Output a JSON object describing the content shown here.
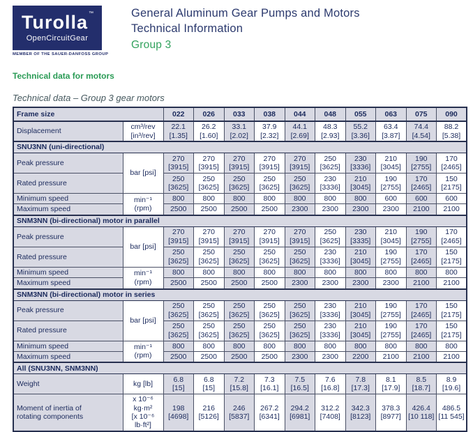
{
  "logo": {
    "brand": "Turolla",
    "trademark": "™",
    "subbrand": "OpenCircuitGear",
    "member_line": "MEMBER OF THE SAUER-DANFOSS GROUP"
  },
  "header": {
    "title_line1": "General Aluminum Gear Pumps and Motors",
    "title_line2": "Technical Information",
    "group_label": "Group 3"
  },
  "section_heading": "Technical data for motors",
  "table_caption": "Technical data – Group 3 gear motors",
  "colors": {
    "logo_navy": "#232e6c",
    "text_navy": "#1b2a5c",
    "heading_green": "#2a9b55",
    "cell_gray": "#d8d9e3",
    "border_dark": "#27304f"
  },
  "table": {
    "frame_size_label": "Frame size",
    "frame_sizes": [
      "022",
      "026",
      "033",
      "038",
      "044",
      "048",
      "055",
      "063",
      "075",
      "090"
    ],
    "pressure_unit": "bar [psi]",
    "speed_unit": "min⁻¹ (rpm)",
    "displacement": {
      "label": "Displacement",
      "unit": [
        "cm³/rev",
        "[in³/rev]"
      ],
      "values": [
        "22.1",
        "26.2",
        "33.1",
        "37.9",
        "44.1",
        "48.3",
        "55.2",
        "63.4",
        "74.4",
        "88.2"
      ],
      "sub": [
        "[1.35]",
        "[1.60]",
        "[2.02]",
        "[2.32]",
        "[2.69]",
        "[2.93]",
        "[3.36]",
        "[3.87]",
        "[4.54]",
        "[5.38]"
      ]
    },
    "sections": [
      {
        "title": "SNU3NN (uni-directional)",
        "peak": {
          "label": "Peak pressure",
          "values": [
            "270",
            "270",
            "270",
            "270",
            "270",
            "250",
            "230",
            "210",
            "190",
            "170"
          ],
          "sub": [
            "[3915]",
            "[3915]",
            "[3915]",
            "[3915]",
            "[3915]",
            "[3625]",
            "[3336]",
            "[3045]",
            "[2755]",
            "[2465]"
          ]
        },
        "rated": {
          "label": "Rated pressure",
          "values": [
            "250",
            "250",
            "250",
            "250",
            "250",
            "230",
            "210",
            "190",
            "170",
            "150"
          ],
          "sub": [
            "[3625]",
            "[3625]",
            "[3625]",
            "[3625]",
            "[3625]",
            "[3336]",
            "[3045]",
            "[2755]",
            "[2465]",
            "[2175]"
          ]
        },
        "min_speed": {
          "label": "Minimum speed",
          "values": [
            "800",
            "800",
            "800",
            "800",
            "800",
            "800",
            "800",
            "600",
            "600",
            "600"
          ]
        },
        "max_speed": {
          "label": "Maximum speed",
          "values": [
            "2500",
            "2500",
            "2500",
            "2500",
            "2300",
            "2300",
            "2300",
            "2300",
            "2100",
            "2100"
          ]
        }
      },
      {
        "title": "SNM3NN (bi-directional) motor in parallel",
        "peak": {
          "label": "Peak pressure",
          "values": [
            "270",
            "270",
            "270",
            "270",
            "270",
            "250",
            "230",
            "210",
            "190",
            "170"
          ],
          "sub": [
            "[3915]",
            "[3915]",
            "[3915]",
            "[3915]",
            "[3915]",
            "[3625]",
            "[3335]",
            "[3045]",
            "[2755]",
            "[2465]"
          ]
        },
        "rated": {
          "label": "Rated pressure",
          "values": [
            "250",
            "250",
            "250",
            "250",
            "250",
            "230",
            "210",
            "190",
            "170",
            "150"
          ],
          "sub": [
            "[3625]",
            "[3625]",
            "[3625]",
            "[3625]",
            "[3625]",
            "[3336]",
            "[3045]",
            "[2755]",
            "[2465]",
            "[2175]"
          ]
        },
        "min_speed": {
          "label": "Minimum speed",
          "values": [
            "800",
            "800",
            "800",
            "800",
            "800",
            "800",
            "800",
            "800",
            "800",
            "800"
          ]
        },
        "max_speed": {
          "label": "Maximum speed",
          "values": [
            "2500",
            "2500",
            "2500",
            "2500",
            "2300",
            "2300",
            "2300",
            "2300",
            "2100",
            "2100"
          ]
        }
      },
      {
        "title": "SNM3NN (bi-directional) motor in series",
        "peak": {
          "label": "Peak pressure",
          "values": [
            "250",
            "250",
            "250",
            "250",
            "250",
            "230",
            "210",
            "190",
            "170",
            "150"
          ],
          "sub": [
            "[3625]",
            "[3625]",
            "[3625]",
            "[3625]",
            "[3625]",
            "[3336]",
            "[3045]",
            "[2755]",
            "[2465]",
            "[2175]"
          ]
        },
        "rated": {
          "label": "Rated pressure",
          "values": [
            "250",
            "250",
            "250",
            "250",
            "250",
            "230",
            "210",
            "190",
            "170",
            "150"
          ],
          "sub": [
            "[3625]",
            "[3625]",
            "[3625]",
            "[3625]",
            "[3625]",
            "[3336]",
            "[3045]",
            "[2755]",
            "[2465]",
            "[2175]"
          ]
        },
        "min_speed": {
          "label": "Minimum speed",
          "values": [
            "800",
            "800",
            "800",
            "800",
            "800",
            "800",
            "800",
            "800",
            "800",
            "800"
          ]
        },
        "max_speed": {
          "label": "Maximum speed",
          "values": [
            "2500",
            "2500",
            "2500",
            "2500",
            "2300",
            "2300",
            "2200",
            "2100",
            "2100",
            "2100"
          ]
        }
      }
    ],
    "all_section": {
      "title": "All  (SNU3NN, SNM3NN)",
      "weight": {
        "label": "Weight",
        "unit": "kg [lb]",
        "values": [
          "6.8",
          "6.8",
          "7.2",
          "7.3",
          "7.5",
          "7.6",
          "7.8",
          "8.1",
          "8.5",
          "8.9"
        ],
        "sub": [
          "[15]",
          "[15]",
          "[15.8]",
          "[16.1]",
          "[16.5]",
          "[16.8]",
          "[17.3]",
          "[17.9]",
          "[18.7]",
          "[19.6]"
        ]
      },
      "inertia": {
        "label": [
          "Moment of inertia of",
          "rotating components"
        ],
        "unit": [
          "x 10⁻⁶ kg·m²",
          "[x 10⁻⁶ lb·ft²]"
        ],
        "values": [
          "198",
          "216",
          "246",
          "267.2",
          "294.2",
          "312.2",
          "342.3",
          "378.3",
          "426.4",
          "486.5"
        ],
        "sub": [
          "[4698]",
          "[5126]",
          "[5837]",
          "[6341]",
          "[6981]",
          "[7408]",
          "[8123]",
          "[8977]",
          "[10 118]",
          "[11 545]"
        ]
      }
    }
  }
}
